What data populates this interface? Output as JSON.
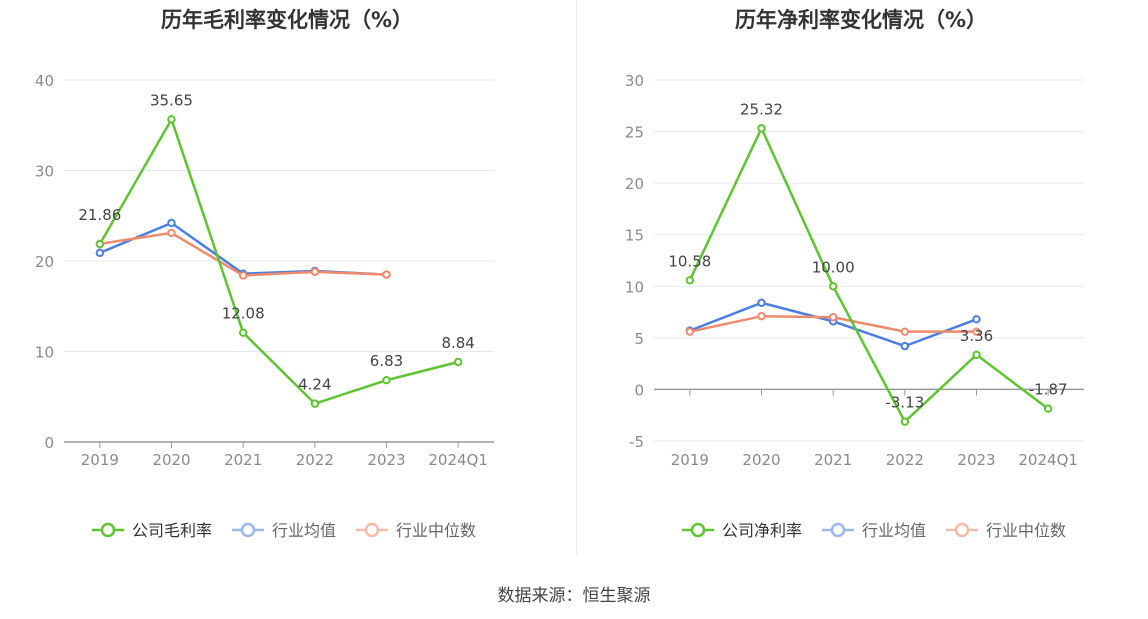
{
  "source_text": "数据来源：恒生聚源",
  "colors": {
    "company": "#5ec431",
    "industry_avg": "#4a7ee0",
    "industry_median": "#f08a6c"
  },
  "chart_data": [
    {
      "type": "line",
      "title": "历年毛利率变化情况（%）",
      "categories": [
        "2019",
        "2020",
        "2021",
        "2022",
        "2023",
        "2024Q1"
      ],
      "ylim": [
        0,
        40
      ],
      "yticks": [
        0,
        10,
        20,
        30,
        40
      ],
      "grid": true,
      "legend_position": "bottom",
      "series": [
        {
          "name": "公司毛利率",
          "values": [
            21.86,
            35.65,
            12.08,
            4.24,
            6.83,
            8.84
          ],
          "labels": [
            "21.86",
            "35.65",
            "12.08",
            "4.24",
            "6.83",
            "8.84"
          ]
        },
        {
          "name": "行业均值",
          "values": [
            20.9,
            24.2,
            18.6,
            18.9,
            18.5,
            null
          ]
        },
        {
          "name": "行业中位数",
          "values": [
            21.9,
            23.1,
            18.4,
            18.8,
            18.5,
            null
          ]
        }
      ]
    },
    {
      "type": "line",
      "title": "历年净利率变化情况（%）",
      "categories": [
        "2019",
        "2020",
        "2021",
        "2022",
        "2023",
        "2024Q1"
      ],
      "ylim": [
        -5,
        30
      ],
      "yticks": [
        -5,
        0,
        5,
        10,
        15,
        20,
        25,
        30
      ],
      "grid": true,
      "legend_position": "bottom",
      "series": [
        {
          "name": "公司净利率",
          "values": [
            10.58,
            25.32,
            10.0,
            -3.13,
            3.36,
            -1.87
          ],
          "labels": [
            "10.58",
            "25.32",
            "10.00",
            "-3.13",
            "3.36",
            "-1.87"
          ]
        },
        {
          "name": "行业均值",
          "values": [
            5.7,
            8.4,
            6.6,
            4.2,
            6.8,
            null
          ]
        },
        {
          "name": "行业中位数",
          "values": [
            5.6,
            7.1,
            7.0,
            5.6,
            5.6,
            null
          ]
        }
      ]
    }
  ]
}
